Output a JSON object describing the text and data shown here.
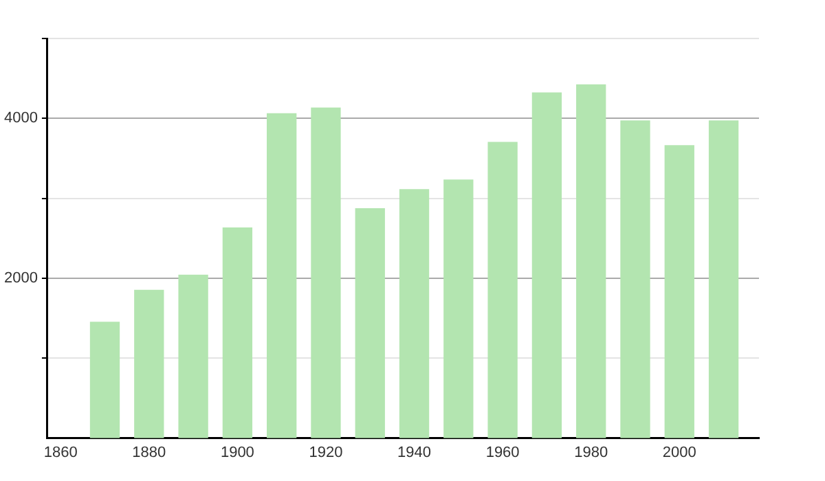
{
  "chart_data": {
    "type": "bar",
    "x": [
      1870,
      1880,
      1890,
      1900,
      1910,
      1920,
      1930,
      1940,
      1950,
      1960,
      1970,
      1980,
      1990,
      2000,
      2010
    ],
    "values": [
      1450,
      1850,
      2040,
      2630,
      4060,
      4130,
      2870,
      3110,
      3230,
      3700,
      4320,
      4420,
      3970,
      3660,
      3970
    ],
    "color": "#b3e5b0",
    "xlim": [
      1857,
      2018
    ],
    "xticks": [
      1860,
      1880,
      1900,
      1920,
      1940,
      1960,
      1980,
      2000
    ],
    "ylim": [
      0,
      5000
    ],
    "yticks": [
      {
        "value": 1000,
        "label": null
      },
      2000,
      {
        "value": 3000,
        "label": null
      },
      4000,
      {
        "value": 5000,
        "label": null
      }
    ],
    "grid": "y",
    "legend": false
  }
}
